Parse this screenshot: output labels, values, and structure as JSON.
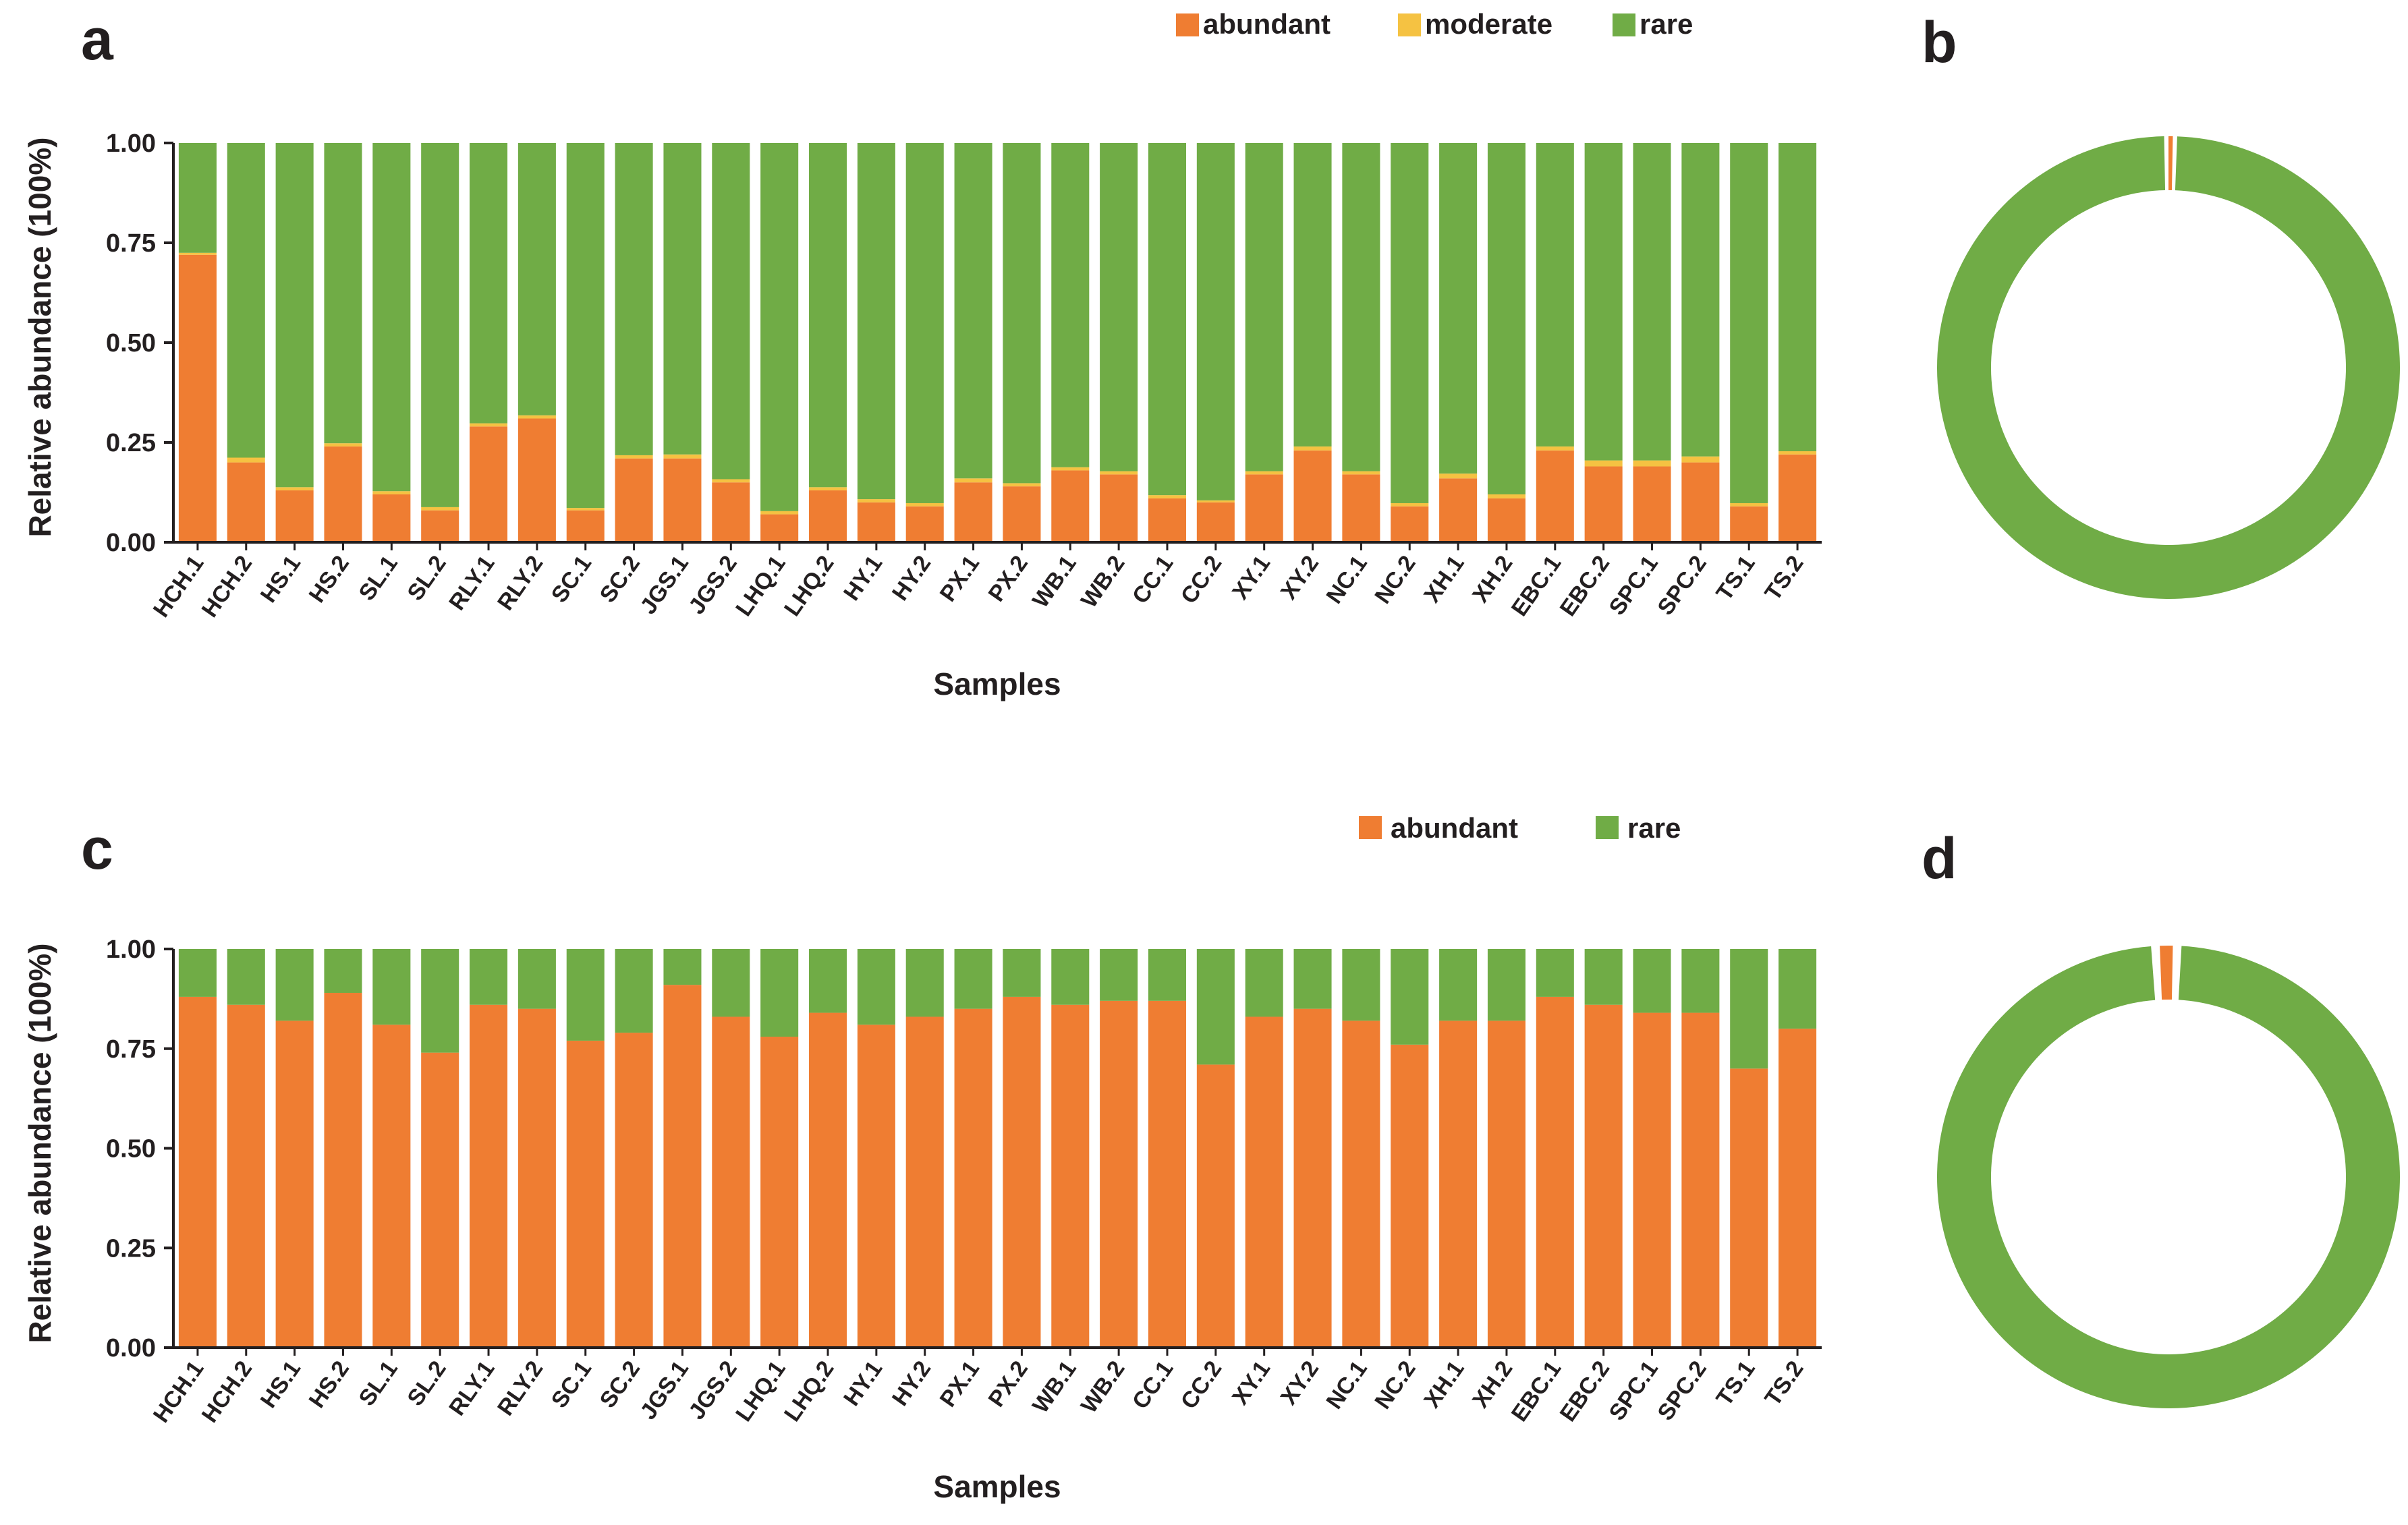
{
  "panel_labels": {
    "a": "a",
    "b": "b",
    "c": "c",
    "d": "d"
  },
  "colors": {
    "abundant": "#ef7d32",
    "moderate": "#f5c242",
    "rare": "#70ac46",
    "axis": "#231f20"
  },
  "chart_data": [
    {
      "panel": "a",
      "type": "bar",
      "stacked": true,
      "title": "",
      "xlabel": "Samples",
      "ylabel": "Relative abundance (100%)",
      "ylim": [
        0,
        1
      ],
      "yticks": [
        "0.00",
        "0.25",
        "0.50",
        "0.75",
        "1.00"
      ],
      "legend": [
        "abundant",
        "moderate",
        "rare"
      ],
      "legend_position": "top",
      "categories": [
        "HCH.1",
        "HCH.2",
        "HS.1",
        "HS.2",
        "SL.1",
        "SL.2",
        "RLY.1",
        "RLY.2",
        "SC.1",
        "SC.2",
        "JGS.1",
        "JGS.2",
        "LHQ.1",
        "LHQ.2",
        "HY.1",
        "HY.2",
        "PX.1",
        "PX.2",
        "WB.1",
        "WB.2",
        "CC.1",
        "CC.2",
        "XY.1",
        "XY.2",
        "NC.1",
        "NC.2",
        "XH.1",
        "XH.2",
        "EBC.1",
        "EBC.2",
        "SPC.1",
        "SPC.2",
        "TS.1",
        "TS.2"
      ],
      "series": [
        {
          "name": "abundant",
          "values": [
            0.72,
            0.2,
            0.13,
            0.24,
            0.12,
            0.08,
            0.29,
            0.31,
            0.08,
            0.21,
            0.21,
            0.15,
            0.07,
            0.13,
            0.1,
            0.09,
            0.15,
            0.14,
            0.18,
            0.17,
            0.11,
            0.1,
            0.17,
            0.23,
            0.17,
            0.09,
            0.16,
            0.11,
            0.23,
            0.19,
            0.19,
            0.2,
            0.09,
            0.22
          ]
        },
        {
          "name": "moderate",
          "values": [
            0.005,
            0.012,
            0.008,
            0.008,
            0.008,
            0.008,
            0.008,
            0.008,
            0.006,
            0.008,
            0.01,
            0.008,
            0.008,
            0.008,
            0.008,
            0.008,
            0.01,
            0.008,
            0.008,
            0.008,
            0.008,
            0.005,
            0.008,
            0.01,
            0.008,
            0.008,
            0.012,
            0.01,
            0.01,
            0.015,
            0.015,
            0.015,
            0.008,
            0.008
          ]
        },
        {
          "name": "rare",
          "values": [
            0.275,
            0.788,
            0.862,
            0.752,
            0.872,
            0.912,
            0.702,
            0.682,
            0.914,
            0.782,
            0.78,
            0.842,
            0.922,
            0.862,
            0.892,
            0.902,
            0.84,
            0.852,
            0.812,
            0.822,
            0.882,
            0.895,
            0.822,
            0.76,
            0.822,
            0.902,
            0.828,
            0.88,
            0.76,
            0.795,
            0.795,
            0.785,
            0.902,
            0.772
          ]
        }
      ]
    },
    {
      "panel": "b",
      "type": "pie",
      "donut": true,
      "labels": [
        "abundant",
        "rare"
      ],
      "values": [
        0.003,
        0.997
      ]
    },
    {
      "panel": "c",
      "type": "bar",
      "stacked": true,
      "title": "",
      "xlabel": "Samples",
      "ylabel": "Relative abundance (100%)",
      "ylim": [
        0,
        1
      ],
      "yticks": [
        "0.00",
        "0.25",
        "0.50",
        "0.75",
        "1.00"
      ],
      "legend": [
        "abundant",
        "rare"
      ],
      "legend_position": "top",
      "categories": [
        "HCH.1",
        "HCH.2",
        "HS.1",
        "HS.2",
        "SL.1",
        "SL.2",
        "RLY.1",
        "RLY.2",
        "SC.1",
        "SC.2",
        "JGS.1",
        "JGS.2",
        "LHQ.1",
        "LHQ.2",
        "HY.1",
        "HY.2",
        "PX.1",
        "PX.2",
        "WB.1",
        "WB.2",
        "CC.1",
        "CC.2",
        "XY.1",
        "XY.2",
        "NC.1",
        "NC.2",
        "XH.1",
        "XH.2",
        "EBC.1",
        "EBC.2",
        "SPC.1",
        "SPC.2",
        "TS.1",
        "TS.2"
      ],
      "series": [
        {
          "name": "abundant",
          "values": [
            0.88,
            0.86,
            0.82,
            0.89,
            0.81,
            0.74,
            0.86,
            0.85,
            0.77,
            0.79,
            0.91,
            0.83,
            0.78,
            0.84,
            0.81,
            0.83,
            0.85,
            0.88,
            0.86,
            0.87,
            0.87,
            0.71,
            0.83,
            0.85,
            0.82,
            0.76,
            0.82,
            0.82,
            0.88,
            0.86,
            0.84,
            0.84,
            0.7,
            0.8
          ]
        },
        {
          "name": "rare",
          "values": [
            0.12,
            0.14,
            0.18,
            0.11,
            0.19,
            0.26,
            0.14,
            0.15,
            0.23,
            0.21,
            0.09,
            0.17,
            0.22,
            0.16,
            0.19,
            0.17,
            0.15,
            0.12,
            0.14,
            0.13,
            0.13,
            0.29,
            0.17,
            0.15,
            0.18,
            0.24,
            0.18,
            0.18,
            0.12,
            0.14,
            0.16,
            0.16,
            0.3,
            0.2
          ]
        }
      ]
    },
    {
      "panel": "d",
      "type": "pie",
      "donut": true,
      "labels": [
        "abundant",
        "rare"
      ],
      "values": [
        0.015,
        0.985
      ]
    }
  ]
}
